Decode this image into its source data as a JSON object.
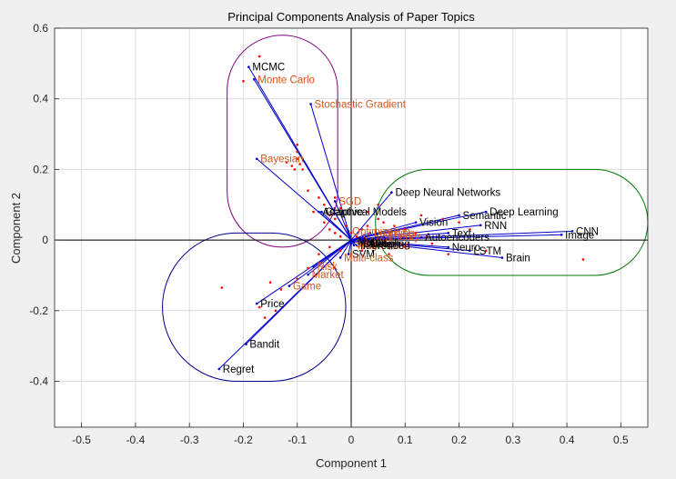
{
  "chart_data": {
    "type": "scatter",
    "title": "Principal Components Analysis of Paper Topics",
    "xlabel": "Component 1",
    "ylabel": "Component 2",
    "xlim": [
      -0.55,
      0.55
    ],
    "ylim": [
      -0.53,
      0.6
    ],
    "xticks": [
      -0.5,
      -0.4,
      -0.3,
      -0.2,
      -0.1,
      0,
      0.1,
      0.2,
      0.3,
      0.4,
      0.5
    ],
    "xtick_labels": [
      "-0.5",
      "-0.4",
      "-0.3",
      "-0.2",
      "-0.1",
      "0",
      "0.1",
      "0.2",
      "0.3",
      "0.4",
      "0.5"
    ],
    "yticks": [
      -0.4,
      -0.2,
      0,
      0.2,
      0.4,
      0.6
    ],
    "ytick_labels": [
      "-0.4",
      "-0.2",
      "0",
      "0.2",
      "0.4",
      "0.6"
    ],
    "grid": true,
    "colors": {
      "vector": "#0000cc",
      "point": "#ff0000",
      "label_black": "#000000",
      "label_orange": "#d95319",
      "cluster_purple": "#800080",
      "cluster_green": "#007a00",
      "cluster_blue": "#00008b",
      "axes_background": "#ffffff",
      "grid": "#dcdcdc"
    },
    "clusters": [
      {
        "color": "cluster_purple",
        "x_range": [
          -0.23,
          -0.025
        ],
        "y_range": [
          -0.02,
          0.58
        ]
      },
      {
        "color": "cluster_green",
        "x_range": [
          0.045,
          0.55
        ],
        "y_range": [
          -0.1,
          0.2
        ]
      },
      {
        "color": "cluster_blue",
        "x_range": [
          -0.35,
          -0.01
        ],
        "y_range": [
          -0.4,
          0.02
        ]
      }
    ],
    "vectors": [
      {
        "label": "MCMC",
        "x": -0.19,
        "y": 0.49,
        "color": "black"
      },
      {
        "label": "Monte Carlo",
        "x": -0.18,
        "y": 0.455,
        "color": "orange"
      },
      {
        "label": "Stochastic Gradient",
        "x": -0.075,
        "y": 0.385,
        "color": "orange"
      },
      {
        "label": "Bayesian",
        "x": -0.175,
        "y": 0.23,
        "color": "orange"
      },
      {
        "label": "SGD",
        "x": -0.03,
        "y": 0.11,
        "color": "orange"
      },
      {
        "label": "Adaptive",
        "x": -0.06,
        "y": 0.08,
        "color": "black"
      },
      {
        "label": "Graphical Models",
        "x": -0.055,
        "y": 0.08,
        "color": "black"
      },
      {
        "label": "Deep Neural Networks",
        "x": 0.075,
        "y": 0.135,
        "color": "black"
      },
      {
        "label": "Deep Learning",
        "x": 0.25,
        "y": 0.08,
        "color": "black"
      },
      {
        "label": "Semantic",
        "x": 0.2,
        "y": 0.07,
        "color": "black"
      },
      {
        "label": "Vision",
        "x": 0.12,
        "y": 0.05,
        "color": "black"
      },
      {
        "label": "RNN",
        "x": 0.24,
        "y": 0.042,
        "color": "black"
      },
      {
        "label": "CNN",
        "x": 0.41,
        "y": 0.025,
        "color": "black"
      },
      {
        "label": "Image",
        "x": 0.39,
        "y": 0.015,
        "color": "black"
      },
      {
        "label": "Text",
        "x": 0.18,
        "y": 0.02,
        "color": "black"
      },
      {
        "label": "Autoencoders",
        "x": 0.13,
        "y": 0.008,
        "color": "black"
      },
      {
        "label": "Neuro",
        "x": 0.18,
        "y": -0.02,
        "color": "black"
      },
      {
        "label": "LSTM",
        "x": 0.22,
        "y": -0.03,
        "color": "black"
      },
      {
        "label": "Brain",
        "x": 0.28,
        "y": -0.05,
        "color": "black"
      },
      {
        "label": "Optimization",
        "x": -0.005,
        "y": 0.025,
        "color": "orange"
      },
      {
        "label": "Learning",
        "x": 0.035,
        "y": 0.02,
        "color": "orange"
      },
      {
        "label": "Theory",
        "x": 0.06,
        "y": 0.01,
        "color": "orange"
      },
      {
        "label": "Kernel",
        "x": 0.015,
        "y": 0.0,
        "color": "orange"
      },
      {
        "label": "Sparse",
        "x": 0.0,
        "y": -0.01,
        "color": "orange"
      },
      {
        "label": "Regression",
        "x": 0.005,
        "y": -0.015,
        "color": "orange"
      },
      {
        "label": "Graph",
        "x": 0.03,
        "y": -0.01,
        "color": "black"
      },
      {
        "label": "Matrix",
        "x": 0.005,
        "y": -0.005,
        "color": "black"
      },
      {
        "label": "Clustering",
        "x": 0.015,
        "y": -0.01,
        "color": "black"
      },
      {
        "label": "Inference",
        "x": 0.01,
        "y": -0.015,
        "color": "black"
      },
      {
        "label": "SVM",
        "x": -0.005,
        "y": -0.04,
        "color": "black"
      },
      {
        "label": "Multi-class",
        "x": -0.02,
        "y": -0.05,
        "color": "orange"
      },
      {
        "label": "Risk",
        "x": -0.07,
        "y": -0.075,
        "color": "orange"
      },
      {
        "label": "Market",
        "x": -0.08,
        "y": -0.098,
        "color": "orange"
      },
      {
        "label": "Game",
        "x": -0.115,
        "y": -0.13,
        "color": "orange"
      },
      {
        "label": "Price",
        "x": -0.175,
        "y": -0.18,
        "color": "black"
      },
      {
        "label": "Bandit",
        "x": -0.195,
        "y": -0.295,
        "color": "black"
      },
      {
        "label": "Regret",
        "x": -0.245,
        "y": -0.365,
        "color": "black"
      }
    ],
    "points": [
      [
        -0.17,
        0.52
      ],
      [
        -0.2,
        0.45
      ],
      [
        -0.12,
        0.22
      ],
      [
        -0.11,
        0.21
      ],
      [
        -0.105,
        0.2
      ],
      [
        -0.1,
        0.23
      ],
      [
        -0.095,
        0.215
      ],
      [
        -0.1,
        0.27
      ],
      [
        -0.1,
        0.25
      ],
      [
        -0.09,
        0.2
      ],
      [
        -0.08,
        0.14
      ],
      [
        -0.06,
        0.12
      ],
      [
        -0.05,
        0.1
      ],
      [
        -0.07,
        0.08
      ],
      [
        -0.04,
        0.07
      ],
      [
        -0.03,
        0.06
      ],
      [
        -0.05,
        0.05
      ],
      [
        -0.04,
        0.03
      ],
      [
        -0.03,
        0.02
      ],
      [
        -0.02,
        0.01
      ],
      [
        -0.01,
        0.04
      ],
      [
        0.0,
        0.02
      ],
      [
        0.01,
        0.01
      ],
      [
        0.02,
        0.03
      ],
      [
        0.03,
        0.04
      ],
      [
        0.05,
        0.06
      ],
      [
        0.06,
        0.05
      ],
      [
        0.08,
        0.04
      ],
      [
        0.1,
        0.03
      ],
      [
        0.12,
        0.02
      ],
      [
        0.14,
        0.01
      ],
      [
        0.15,
        -0.01
      ],
      [
        0.1,
        -0.02
      ],
      [
        0.08,
        -0.01
      ],
      [
        0.04,
        -0.02
      ],
      [
        0.02,
        -0.03
      ],
      [
        0.0,
        -0.04
      ],
      [
        -0.02,
        -0.03
      ],
      [
        -0.04,
        -0.02
      ],
      [
        -0.06,
        -0.04
      ],
      [
        -0.08,
        -0.08
      ],
      [
        -0.1,
        -0.11
      ],
      [
        -0.13,
        -0.14
      ],
      [
        -0.15,
        -0.12
      ],
      [
        -0.17,
        -0.19
      ],
      [
        -0.16,
        -0.22
      ],
      [
        -0.14,
        -0.2
      ],
      [
        -0.24,
        -0.135
      ],
      [
        0.43,
        -0.055
      ],
      [
        0.13,
        0.07
      ],
      [
        0.17,
        0.06
      ],
      [
        0.2,
        0.05
      ],
      [
        0.22,
        0.03
      ],
      [
        0.03,
        0.08
      ],
      [
        0.05,
        0.1
      ],
      [
        -0.02,
        0.09
      ],
      [
        -0.03,
        0.12
      ],
      [
        0.07,
        -0.04
      ],
      [
        0.18,
        -0.04
      ],
      [
        0.25,
        -0.03
      ]
    ]
  }
}
